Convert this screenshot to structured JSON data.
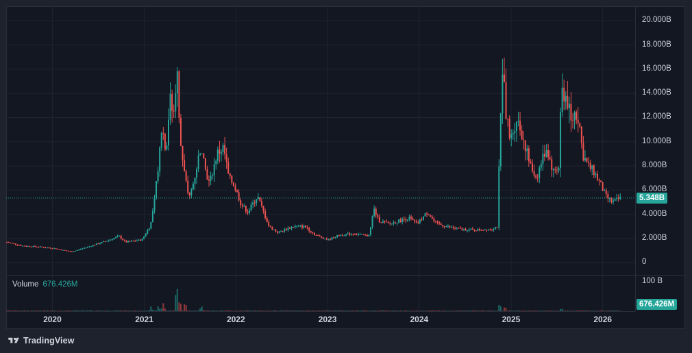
{
  "chart_data": {
    "type": "candlestick",
    "title": "",
    "xlabel": "",
    "ylabel": "",
    "ylim": [
      -1000000000,
      21200000000
    ],
    "y_tick_labels": [
      "20.000B",
      "18.000B",
      "16.000B",
      "14.000B",
      "12.000B",
      "10.000B",
      "8.000B",
      "6.000B",
      "4.000B",
      "2.000B",
      "0"
    ],
    "y_tick_values": [
      20000000000,
      18000000000,
      16000000000,
      14000000000,
      12000000000,
      10000000000,
      8000000000,
      6000000000,
      4000000000,
      2000000000,
      0
    ],
    "x_tick_labels": [
      "2020",
      "2021",
      "2022",
      "2023",
      "2024",
      "2025",
      "2026"
    ],
    "x_range": [
      "2019-07-01",
      "2026-05-10"
    ],
    "grid": true,
    "close_path": [
      [
        "2019-07-01",
        1.7
      ],
      [
        "2019-09-01",
        1.4
      ],
      [
        "2019-11-15",
        1.3
      ],
      [
        "2020-01-01",
        1.2
      ],
      [
        "2020-03-15",
        0.9
      ],
      [
        "2020-05-01",
        1.2
      ],
      [
        "2020-08-01",
        1.8
      ],
      [
        "2020-09-20",
        2.2
      ],
      [
        "2020-10-15",
        1.7
      ],
      [
        "2020-12-20",
        1.9
      ],
      [
        "2021-01-20",
        3.0
      ],
      [
        "2021-02-05",
        4.5
      ],
      [
        "2021-02-25",
        8.5
      ],
      [
        "2021-03-10",
        11.5
      ],
      [
        "2021-03-25",
        9.0
      ],
      [
        "2021-04-10",
        13.5
      ],
      [
        "2021-04-25",
        12.0
      ],
      [
        "2021-05-08",
        16.5
      ],
      [
        "2021-05-20",
        10.0
      ],
      [
        "2021-06-10",
        7.0
      ],
      [
        "2021-06-25",
        5.2
      ],
      [
        "2021-07-15",
        6.8
      ],
      [
        "2021-08-10",
        9.5
      ],
      [
        "2021-08-25",
        8.0
      ],
      [
        "2021-09-15",
        6.5
      ],
      [
        "2021-10-15",
        9.0
      ],
      [
        "2021-11-10",
        9.5
      ],
      [
        "2021-12-01",
        7.0
      ],
      [
        "2021-12-20",
        6.5
      ],
      [
        "2022-01-20",
        4.8
      ],
      [
        "2022-02-15",
        4.2
      ],
      [
        "2022-03-25",
        5.5
      ],
      [
        "2022-05-10",
        3.0
      ],
      [
        "2022-06-15",
        2.5
      ],
      [
        "2022-08-15",
        3.0
      ],
      [
        "2022-10-01",
        3.0
      ],
      [
        "2022-11-10",
        2.3
      ],
      [
        "2023-01-01",
        1.9
      ],
      [
        "2023-02-15",
        2.3
      ],
      [
        "2023-04-15",
        2.4
      ],
      [
        "2023-06-10",
        2.2
      ],
      [
        "2023-06-20",
        3.0
      ],
      [
        "2023-07-01",
        4.5
      ],
      [
        "2023-07-20",
        3.5
      ],
      [
        "2023-09-01",
        3.2
      ],
      [
        "2023-10-15",
        3.5
      ],
      [
        "2023-11-20",
        3.7
      ],
      [
        "2023-12-20",
        3.2
      ],
      [
        "2024-02-01",
        4.2
      ],
      [
        "2024-03-01",
        3.3
      ],
      [
        "2024-04-15",
        3.0
      ],
      [
        "2024-06-01",
        2.8
      ],
      [
        "2024-08-05",
        2.7
      ],
      [
        "2024-10-15",
        2.8
      ],
      [
        "2024-11-05",
        3.0
      ],
      [
        "2024-11-10",
        7.0
      ],
      [
        "2024-11-25",
        16.5
      ],
      [
        "2024-12-05",
        13.0
      ],
      [
        "2024-12-25",
        10.0
      ],
      [
        "2025-01-20",
        12.0
      ],
      [
        "2025-02-20",
        10.0
      ],
      [
        "2025-03-15",
        8.0
      ],
      [
        "2025-04-10",
        7.0
      ],
      [
        "2025-05-01",
        8.5
      ],
      [
        "2025-05-20",
        9.5
      ],
      [
        "2025-06-15",
        7.5
      ],
      [
        "2025-07-10",
        8.0
      ],
      [
        "2025-07-16",
        14.5
      ],
      [
        "2025-08-10",
        13.5
      ],
      [
        "2025-08-25",
        11.5
      ],
      [
        "2025-09-10",
        12.5
      ],
      [
        "2025-09-25",
        12.0
      ],
      [
        "2025-10-10",
        9.0
      ],
      [
        "2025-11-01",
        8.0
      ],
      [
        "2025-11-25",
        7.5
      ],
      [
        "2025-12-20",
        6.5
      ],
      [
        "2026-01-10",
        5.5
      ],
      [
        "2026-02-05",
        5.0
      ],
      [
        "2026-03-10",
        5.348
      ]
    ],
    "volume_peaks": [
      [
        "2021-01-25",
        0.15
      ],
      [
        "2021-02-25",
        0.2
      ],
      [
        "2021-03-15",
        0.35
      ],
      [
        "2021-05-08",
        1.0
      ],
      [
        "2021-05-20",
        0.45
      ],
      [
        "2021-06-10",
        0.3
      ],
      [
        "2021-08-15",
        0.2
      ],
      [
        "2024-11-15",
        0.3
      ],
      [
        "2024-12-05",
        0.22
      ],
      [
        "2025-07-18",
        0.12
      ]
    ],
    "volume_ylim": [
      0,
      100
    ],
    "volume_unit": "B"
  },
  "ui": {
    "current_price_label": "5.348B",
    "current_price_value": 5.348,
    "volume_title": "Volume",
    "volume_value": "676.426M",
    "volume_axis_label": "100 B",
    "brand": "TradingView",
    "colors": {
      "background": "#131722",
      "frame": "#1e222d",
      "grid": "#1f2431",
      "up": "#26a69a",
      "down": "#ef5350",
      "text": "#d1d4dc"
    }
  }
}
